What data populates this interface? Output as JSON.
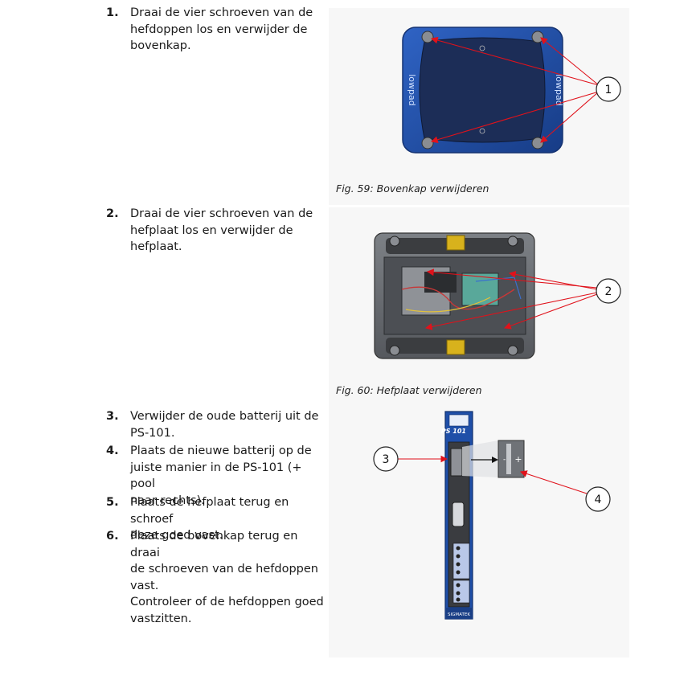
{
  "steps": [
    {
      "num": "1.",
      "lines": [
        "Draai de vier schroeven van de",
        "hefdoppen los en verwijder de",
        "bovenkap."
      ]
    },
    {
      "num": "2.",
      "lines": [
        "Draai de vier schroeven van de",
        "hefplaat los en verwijder de",
        "hefplaat."
      ]
    },
    {
      "num": "3.",
      "lines": [
        "Verwijder de oude batterij uit de",
        "PS-101."
      ]
    },
    {
      "num": "4.",
      "lines": [
        "Plaats de nieuwe batterij op de",
        "juiste manier in de PS-101 (+ pool",
        "naar rechts)."
      ]
    },
    {
      "num": "5.",
      "lines": [
        "Plaats de hefplaat terug en schroef",
        "deze goed vast."
      ]
    },
    {
      "num": "6.",
      "lines": [
        "Plaats de bovenkap terug en draai",
        "de schroeven van de hefdoppen",
        "vast.",
        "Controleer of de hefdoppen goed",
        "vastzitten."
      ]
    }
  ],
  "figures": [
    {
      "caption": "Fig. 59: Bovenkap verwijderen",
      "callout": "1",
      "brand": "lowpad"
    },
    {
      "caption": "Fig. 60: Hefplaat verwijderen",
      "callout": "2"
    },
    {
      "callouts": [
        "3",
        "4"
      ],
      "module_label": "PS 101",
      "vendor": "SIGMATEK",
      "polarity": {
        "minus": "-",
        "plus": "+"
      }
    }
  ],
  "colors": {
    "arrow": "#e0121b",
    "device_blue": "#1f4fa8",
    "screen": "#1c2d57",
    "plate": "#6b6e73"
  }
}
